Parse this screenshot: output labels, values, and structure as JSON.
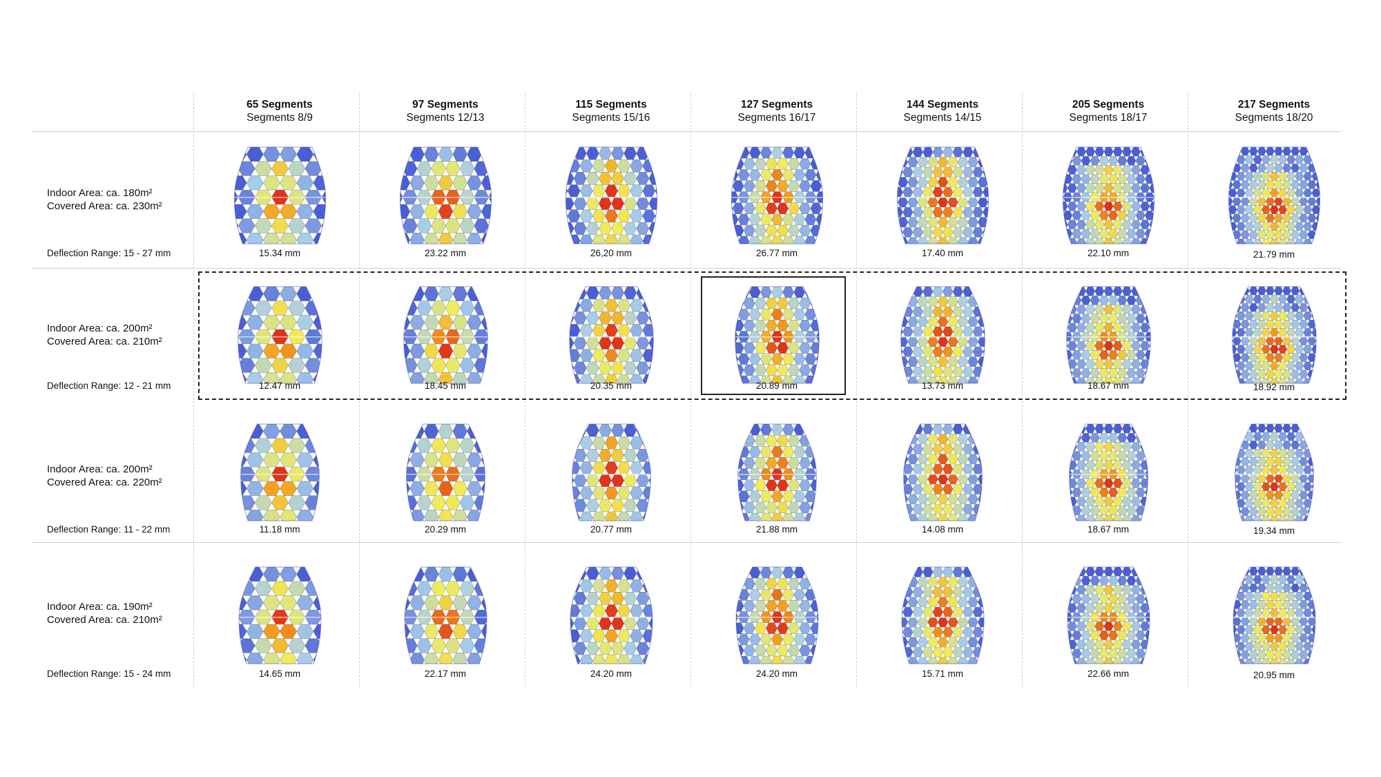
{
  "columns": [
    {
      "title": "65 Segments",
      "subtitle": "Segments 8/9"
    },
    {
      "title": "97 Segments",
      "subtitle": "Segments 12/13"
    },
    {
      "title": "115 Segments",
      "subtitle": "Segments 15/16"
    },
    {
      "title": "127 Segments",
      "subtitle": "Segments 16/17"
    },
    {
      "title": "144 Segments",
      "subtitle": "Segments 14/15"
    },
    {
      "title": "205 Segments",
      "subtitle": "Segments 18/17"
    },
    {
      "title": "217 Segments",
      "subtitle": "Segments 18/20"
    }
  ],
  "rows": [
    {
      "indoor": "Indoor Area: ca. 180m²",
      "covered": "Covered Area: ca. 230m²",
      "range": "Deflection Range: 15 - 27 mm",
      "values": [
        "15.34 mm",
        "23.22 mm",
        "26,20 mm",
        "26.77 mm",
        "17.40 mm",
        "22.10 mm",
        "21.79 mm"
      ]
    },
    {
      "indoor": "Indoor Area: ca. 200m²",
      "covered": "Covered Area: ca. 210m²",
      "range": "Deflection Range: 12 - 21 mm",
      "values": [
        "12.47 mm",
        "18.45 mm",
        "20.35 mm",
        "20.89 mm",
        "13.73 mm",
        "18.67 mm",
        "18.92 mm"
      ]
    },
    {
      "indoor": "Indoor Area: ca. 200m²",
      "covered": "Covered Area: ca. 220m²",
      "range": "Deflection Range: 11 - 22 mm",
      "values": [
        "11.18 mm",
        "20.29 mm",
        "20.77 mm",
        "21.88 mm",
        "14.08 mm",
        "18.67 mm",
        "19.34 mm"
      ]
    },
    {
      "indoor": "Indoor Area: ca. 190m²",
      "covered": "Covered Area: ca. 210m²",
      "range": "Deflection Range: 15 - 24 mm",
      "values": [
        "14.65 mm",
        "22.17 mm",
        "24.20 mm",
        "24.20 mm",
        "15.71 mm",
        "22.66 mm",
        "20.95 mm"
      ]
    }
  ],
  "selection": {
    "row": 1,
    "column": 3
  },
  "colors": {
    "low": "#4a5fd6",
    "mid_low": "#a8cdea",
    "mid": "#f2ec4a",
    "high": "#f39a1a",
    "peak": "#e0341a",
    "grid": "#cfcfcf"
  }
}
